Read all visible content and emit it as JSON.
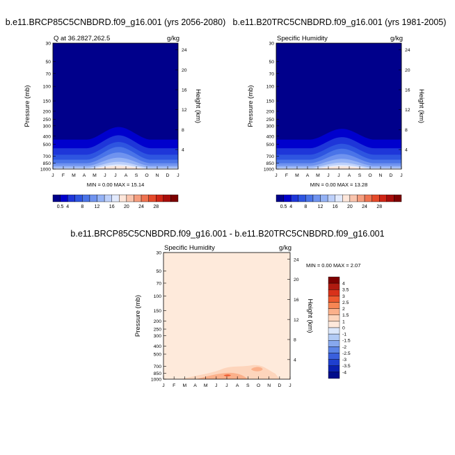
{
  "chart_data": [
    {
      "type": "contour",
      "title": "b.e11.BRCP85C5CNBDRD.f09_g16.001 (yrs 2056-2080)",
      "subtitle_left": "Q at 36.2827,262.5",
      "subtitle_right": "g/kg",
      "ylabel": "Pressure (mb)",
      "ylabel_right": "Height (km)",
      "x_ticks": [
        "J",
        "F",
        "M",
        "A",
        "M",
        "J",
        "J",
        "A",
        "S",
        "O",
        "N",
        "D",
        "J"
      ],
      "pressure_ticks": [
        30,
        50,
        70,
        100,
        150,
        200,
        250,
        300,
        400,
        500,
        700,
        850,
        1000
      ],
      "height_ticks": [
        4,
        8,
        12,
        16,
        20,
        24
      ],
      "stats_text": "MIN =   0.00 MAX =  15.14",
      "min": 0.0,
      "max": 15.14,
      "scale": "full",
      "colorbar_labels": [
        "0.5",
        "4",
        "8",
        "12",
        "16",
        "20",
        "24",
        "28"
      ]
    },
    {
      "type": "contour",
      "title": "b.e11.B20TRC5CNBDRD.f09_g16.001 (yrs 1981-2005)",
      "subtitle_left": "Specific Humidity",
      "subtitle_right": "g/kg",
      "ylabel": "Pressure (mb)",
      "ylabel_right": "Height (km)",
      "x_ticks": [
        "J",
        "F",
        "M",
        "A",
        "M",
        "J",
        "J",
        "A",
        "S",
        "O",
        "N",
        "D",
        "J"
      ],
      "pressure_ticks": [
        30,
        50,
        70,
        100,
        150,
        200,
        250,
        300,
        400,
        500,
        700,
        850,
        1000
      ],
      "height_ticks": [
        4,
        8,
        12,
        16,
        20,
        24
      ],
      "stats_text": "MIN =   0.00 MAX =  13.28",
      "min": 0.0,
      "max": 13.28,
      "scale": "full",
      "colorbar_labels": [
        "0.5",
        "4",
        "8",
        "12",
        "16",
        "20",
        "24",
        "28"
      ]
    },
    {
      "type": "contour",
      "title": "b.e11.BRCP85C5CNBDRD.f09_g16.001 - b.e11.B20TRC5CNBDRD.f09_g16.001",
      "subtitle_left": "Specific Humidity",
      "subtitle_right": "g/kg",
      "ylabel": "Pressure (mb)",
      "ylabel_right": "Height (km)",
      "x_ticks": [
        "J",
        "F",
        "M",
        "A",
        "M",
        "J",
        "J",
        "A",
        "S",
        "O",
        "N",
        "D",
        "J"
      ],
      "pressure_ticks": [
        30,
        50,
        70,
        100,
        150,
        200,
        250,
        300,
        400,
        500,
        700,
        850,
        1000
      ],
      "height_ticks": [
        4,
        8,
        12,
        16,
        20,
        24
      ],
      "stats_text": "MIN =   0.00 MAX =   2.07",
      "min": 0.0,
      "max": 2.07,
      "scale": "difference",
      "colorbar_labels": [
        "4",
        "3.5",
        "3",
        "2.5",
        "2",
        "1.5",
        "1",
        "0",
        "-1",
        "-1.5",
        "-2",
        "-2.5",
        "-3",
        "-3.5",
        "-4"
      ]
    }
  ],
  "colors": {
    "full_scale": [
      "#00008b",
      "#0000cd",
      "#1e36d9",
      "#2e55e0",
      "#4a74e8",
      "#6f93ef",
      "#94b2f5",
      "#bdd0fa",
      "#e2eafd",
      "#fde6da",
      "#f9c4ad",
      "#f59d7e",
      "#ef7350",
      "#e54a2a",
      "#cf2515",
      "#a80d0a",
      "#7d0000"
    ],
    "difference_scale": [
      "#7d0000",
      "#b01a10",
      "#d8321a",
      "#ee5a2f",
      "#f78654",
      "#fbb08a",
      "#fdd5bc",
      "#fee9dc",
      "#dbe7fb",
      "#b2cbf5",
      "#87a8ee",
      "#5c84e6",
      "#3a5fdc",
      "#1f3fcf",
      "#0a20b0",
      "#000c8a"
    ],
    "difference_background": "#feeadb"
  }
}
